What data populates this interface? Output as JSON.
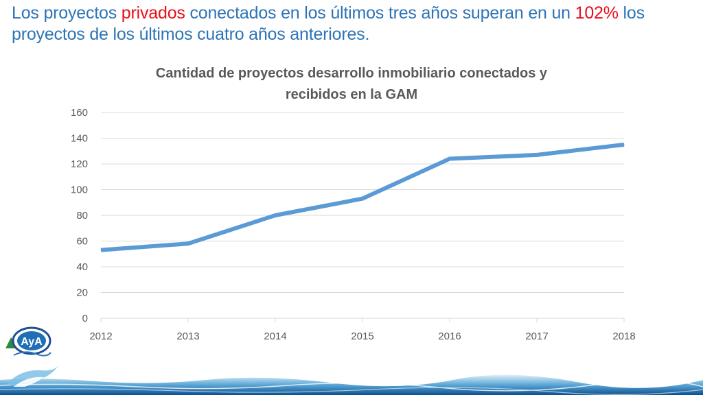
{
  "headline": {
    "part1": "Los proyectos ",
    "highlight1": "privados",
    "part2": "  conectados en los últimos tres años superan en un ",
    "highlight2": "102%",
    "part3": " los proyectos de los últimos cuatro años anteriores."
  },
  "logo": {
    "text": "AyA"
  },
  "colors": {
    "headline": "#2E74B5",
    "highlight": "#E8101A",
    "series_line": "#5B9BD5",
    "gridline": "#D9D9D9",
    "axis_text": "#595959"
  },
  "chart_data": {
    "type": "line",
    "title_line1": "Cantidad de proyectos desarrollo inmobiliario conectados y",
    "title_line2": "recibidos en la GAM",
    "xlabel": "",
    "ylabel": "",
    "categories": [
      "2012",
      "2013",
      "2014",
      "2015",
      "2016",
      "2017",
      "2018"
    ],
    "series": [
      {
        "values": [
          53,
          58,
          80,
          93,
          124,
          127,
          135
        ]
      }
    ],
    "ylim": [
      0,
      160
    ],
    "yticks": [
      0,
      20,
      40,
      60,
      80,
      100,
      120,
      140,
      160
    ],
    "grid": true,
    "legend": "none"
  }
}
